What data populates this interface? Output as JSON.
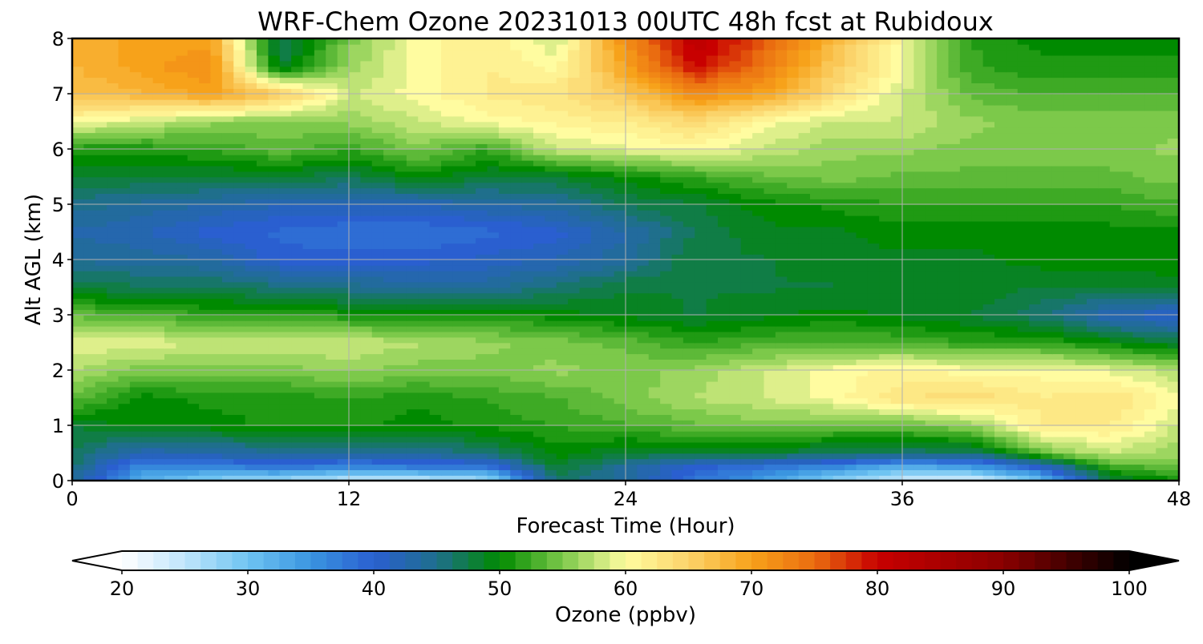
{
  "chart_data": {
    "type": "heatmap",
    "title": "WRF-Chem Ozone  20231013 00UTC 48h fcst at Rubidoux",
    "xlabel": "Forecast Time (Hour)",
    "ylabel": "Alt AGL (km)",
    "xlim": [
      0,
      48
    ],
    "ylim": [
      0,
      8
    ],
    "xticks": [
      0,
      12,
      24,
      36,
      48
    ],
    "yticks": [
      0,
      1,
      2,
      3,
      4,
      5,
      6,
      7,
      8
    ],
    "grid": true,
    "z_label": "Ozone  (ppbv)",
    "x": [
      0,
      3,
      6,
      9,
      12,
      15,
      18,
      21,
      24,
      27,
      30,
      33,
      36,
      39,
      42,
      45,
      48
    ],
    "y": [
      0,
      0.25,
      0.5,
      1,
      1.5,
      2,
      2.5,
      3,
      3.5,
      4,
      4.5,
      5,
      5.5,
      6,
      6.5,
      7,
      7.5,
      8
    ],
    "z": [
      [
        44,
        32,
        28,
        26,
        24,
        24,
        26,
        46,
        44,
        38,
        34,
        28,
        24,
        22,
        30,
        48,
        50
      ],
      [
        46,
        36,
        36,
        38,
        36,
        37,
        38,
        48,
        44,
        40,
        38,
        36,
        32,
        34,
        40,
        52,
        54
      ],
      [
        47,
        42,
        43,
        44,
        44,
        44,
        46,
        50,
        48,
        48,
        48,
        47,
        46,
        46,
        54,
        58,
        56
      ],
      [
        48,
        50,
        50,
        51,
        51,
        50,
        51,
        52,
        53,
        54,
        55,
        54,
        54,
        56,
        62,
        62,
        58
      ],
      [
        54,
        50,
        51,
        51,
        52,
        51,
        52,
        53,
        55,
        57,
        58,
        60,
        63,
        64,
        62,
        63,
        60
      ],
      [
        57,
        55,
        55,
        55,
        56,
        55,
        55,
        56,
        55,
        56,
        58,
        60,
        61,
        60,
        60,
        59,
        57
      ],
      [
        59,
        59,
        58,
        58,
        58,
        57,
        56,
        55,
        54,
        52,
        53,
        53,
        53,
        52,
        52,
        50,
        48
      ],
      [
        54,
        53,
        52,
        52,
        51,
        51,
        51,
        50,
        49,
        48,
        49,
        50,
        49,
        48,
        46,
        42,
        40
      ],
      [
        48,
        47,
        47,
        46,
        45,
        44,
        44,
        46,
        48,
        48,
        48,
        48,
        49,
        49,
        48,
        48,
        49
      ],
      [
        44,
        44,
        43,
        40,
        40,
        40,
        41,
        42,
        44,
        48,
        48,
        49,
        49,
        49,
        50,
        50,
        50
      ],
      [
        43,
        42,
        40,
        39,
        38,
        38,
        39,
        40,
        43,
        47,
        49,
        49,
        50,
        50,
        50,
        50,
        50
      ],
      [
        45,
        44,
        43,
        42,
        42,
        42,
        43,
        44,
        47,
        48,
        50,
        51,
        52,
        52,
        52,
        52,
        53
      ],
      [
        48,
        48,
        48,
        48,
        47,
        50,
        48,
        48,
        50,
        52,
        54,
        55,
        54,
        54,
        54,
        54,
        55
      ],
      [
        51,
        51,
        52,
        54,
        52,
        55,
        52,
        58,
        59,
        60,
        58,
        56,
        56,
        55,
        55,
        55,
        56
      ],
      [
        60,
        58,
        56,
        55,
        56,
        58,
        60,
        61,
        62,
        64,
        60,
        58,
        58,
        56,
        55,
        55,
        55
      ],
      [
        67,
        68,
        70,
        66,
        58,
        60,
        62,
        63,
        66,
        72,
        70,
        64,
        58,
        54,
        53,
        53,
        53
      ],
      [
        68,
        70,
        72,
        48,
        56,
        60,
        62,
        60,
        70,
        80,
        74,
        66,
        60,
        52,
        51,
        51,
        51
      ],
      [
        68,
        70,
        70,
        46,
        55,
        60,
        62,
        58,
        72,
        82,
        76,
        68,
        60,
        52,
        50,
        50,
        50
      ]
    ],
    "colorbar": {
      "ticks": [
        20,
        30,
        40,
        50,
        60,
        70,
        80,
        90,
        100
      ],
      "min": 20,
      "max": 100,
      "extend": "both",
      "stops": [
        [
          20,
          "#ffffff"
        ],
        [
          25,
          "#bfe5fb"
        ],
        [
          30,
          "#6fc4f2"
        ],
        [
          35,
          "#3a95e0"
        ],
        [
          40,
          "#2a5fd0"
        ],
        [
          45,
          "#1f6f8c"
        ],
        [
          50,
          "#008a00"
        ],
        [
          55,
          "#7cc94a"
        ],
        [
          60,
          "#fffca0"
        ],
        [
          65,
          "#fbd36a"
        ],
        [
          70,
          "#f7a21a"
        ],
        [
          75,
          "#ea6c10"
        ],
        [
          80,
          "#c80000"
        ],
        [
          90,
          "#8a0000"
        ],
        [
          100,
          "#000000"
        ]
      ]
    }
  }
}
